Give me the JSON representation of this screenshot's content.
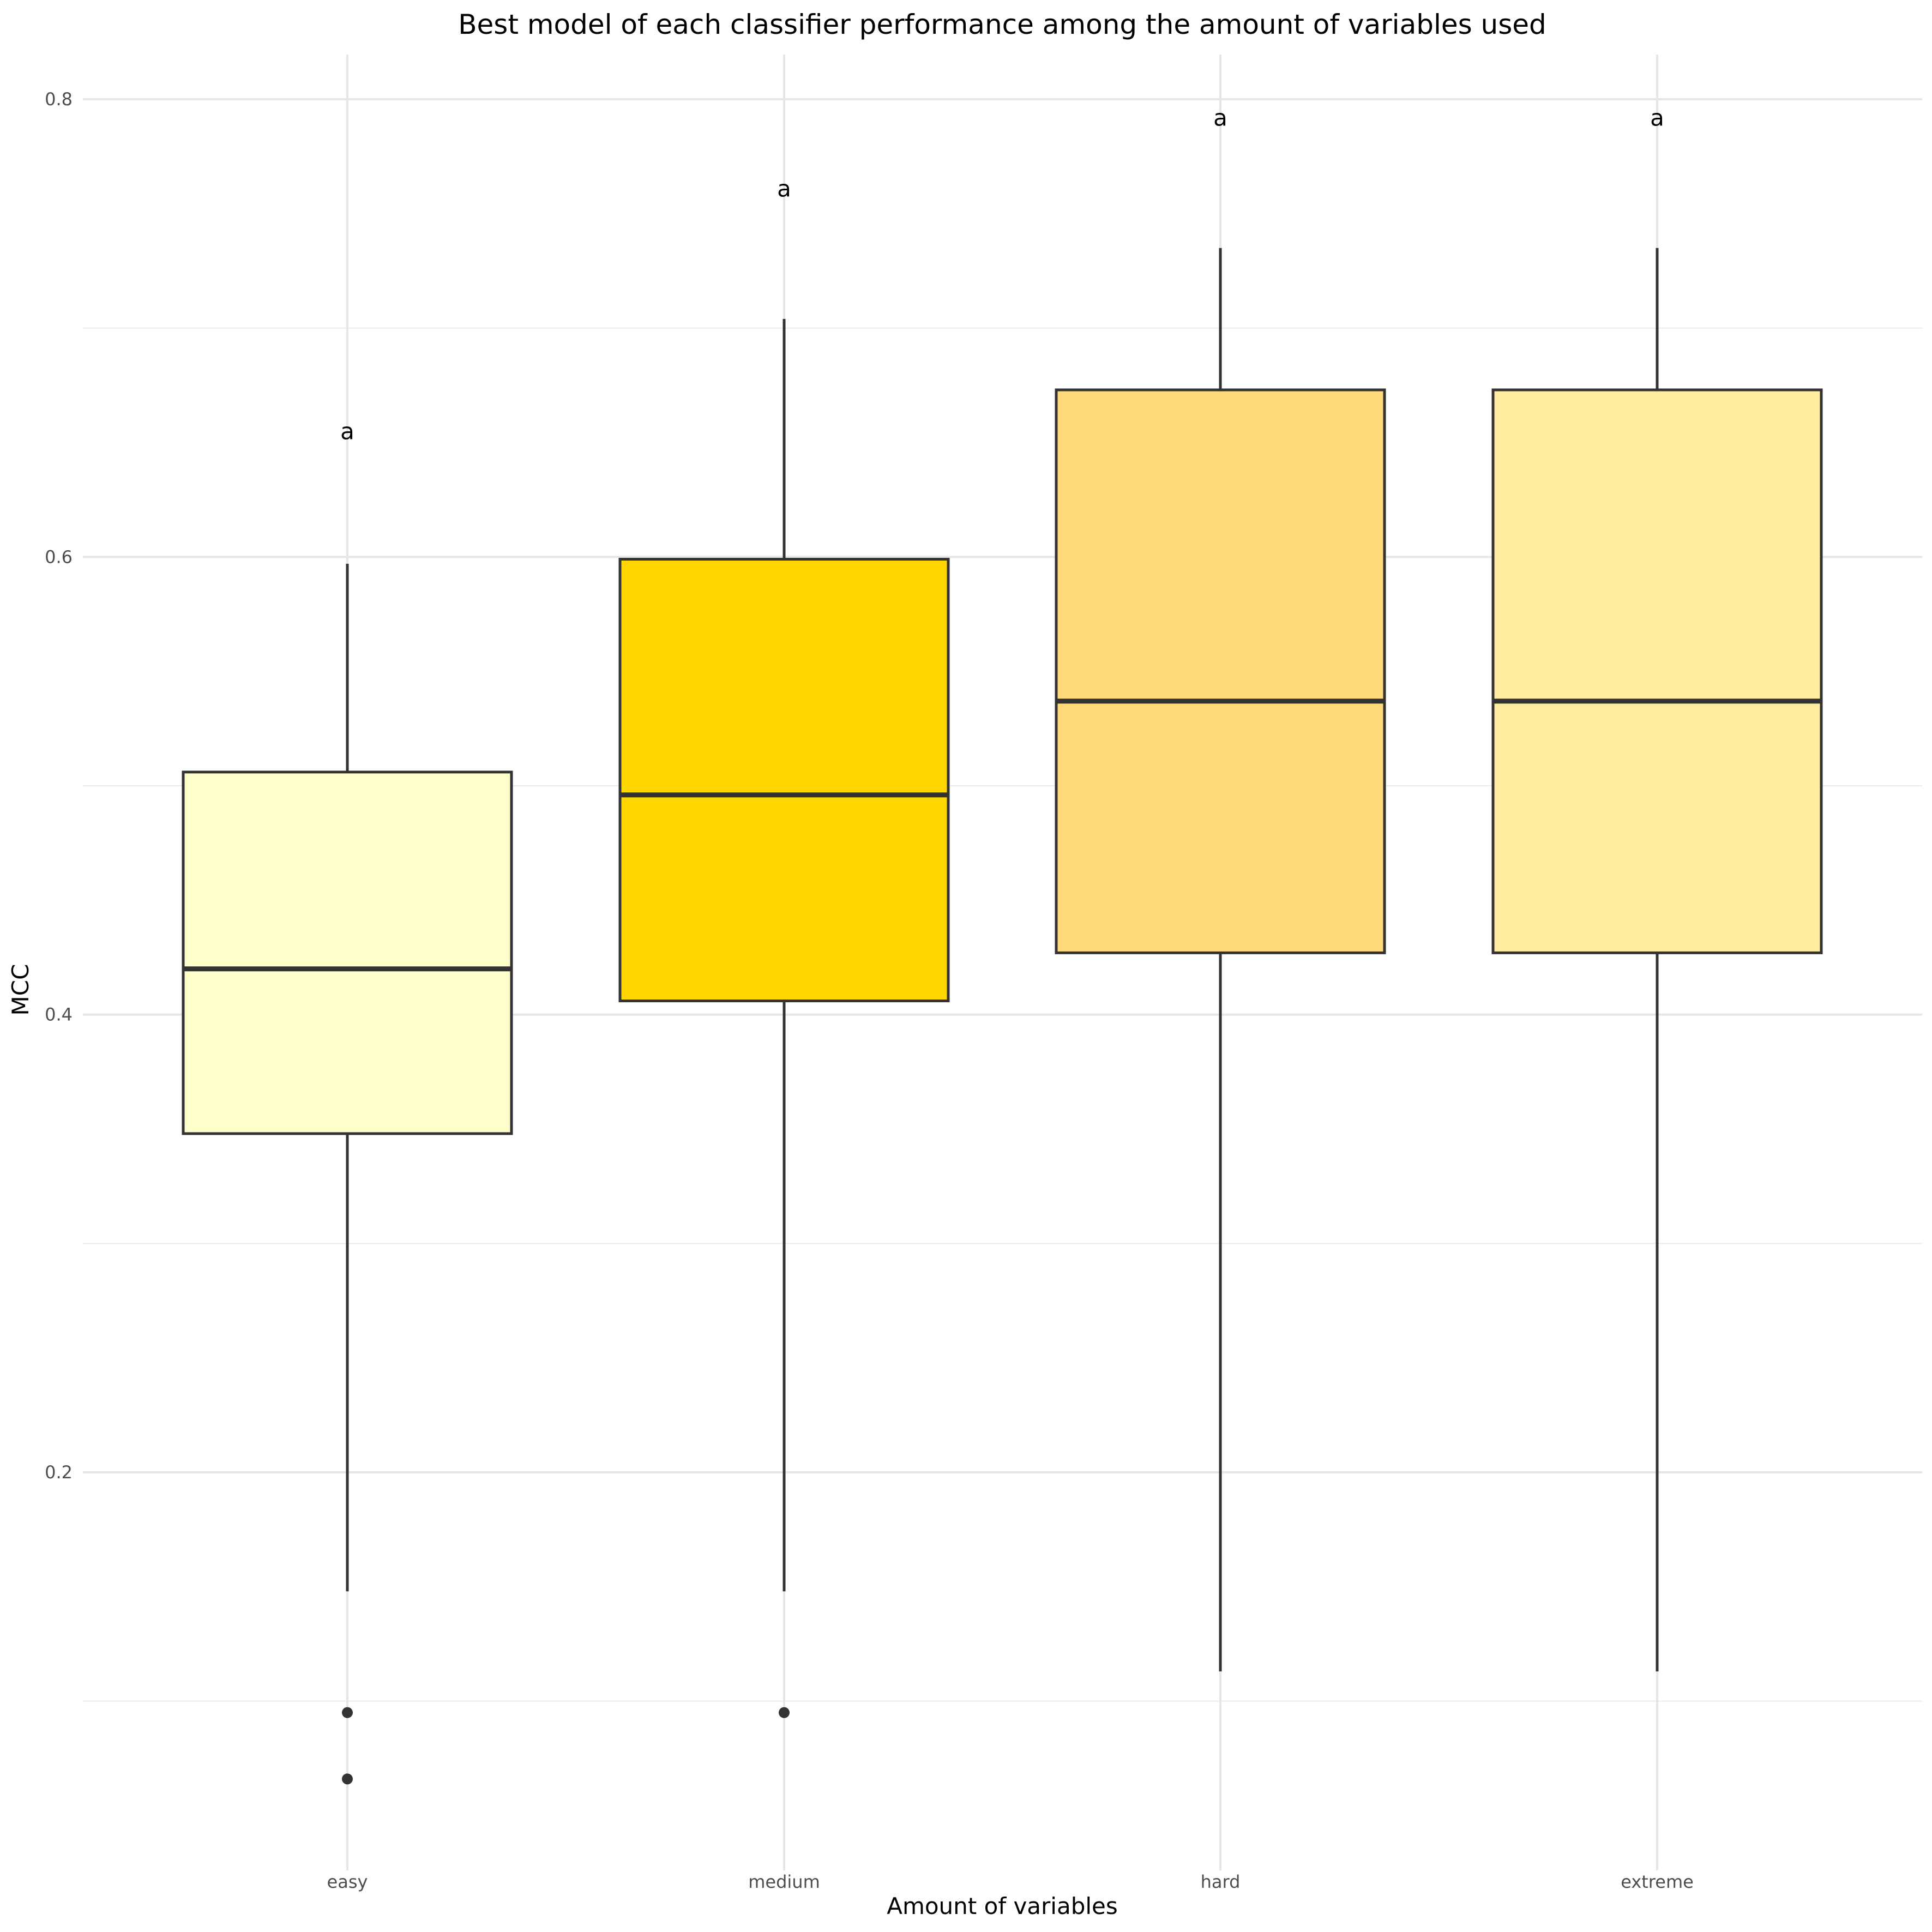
{
  "chart_data": {
    "type": "box",
    "title": "Best model of each classifier performance among the amount of variables used",
    "xlabel": "Amount of variables",
    "ylabel": "MCC",
    "ylim": [
      0.03,
      0.82
    ],
    "y_ticks": [
      {
        "value": 0.2,
        "label": "0.2"
      },
      {
        "value": 0.4,
        "label": "0.4"
      },
      {
        "value": 0.6,
        "label": "0.6"
      },
      {
        "value": 0.8,
        "label": "0.8"
      }
    ],
    "y_minor_gridlines": [
      0.1,
      0.3,
      0.5,
      0.7
    ],
    "grid": true,
    "legend": "none",
    "categories": [
      "easy",
      "medium",
      "hard",
      "extreme"
    ],
    "boxes": [
      {
        "category": "easy",
        "whisker_low": 0.148,
        "q1": 0.348,
        "median": 0.42,
        "q3": 0.506,
        "whisker_high": 0.597,
        "outliers": [
          0.095,
          0.066
        ],
        "color": "#FFFFCC",
        "letter": "a",
        "letter_y": 0.655
      },
      {
        "category": "medium",
        "whisker_low": 0.148,
        "q1": 0.406,
        "median": 0.496,
        "q3": 0.599,
        "whisker_high": 0.704,
        "outliers": [
          0.095
        ],
        "color": "#FFD700",
        "letter": "a",
        "letter_y": 0.761
      },
      {
        "category": "hard",
        "whisker_low": 0.113,
        "q1": 0.427,
        "median": 0.537,
        "q3": 0.673,
        "whisker_high": 0.735,
        "outliers": [],
        "color": "#FFD97A",
        "letter": "a",
        "letter_y": 0.792
      },
      {
        "category": "extreme",
        "whisker_low": 0.113,
        "q1": 0.427,
        "median": 0.537,
        "q3": 0.673,
        "whisker_high": 0.735,
        "outliers": [],
        "color": "#FFEC9F",
        "letter": "a",
        "letter_y": 0.792
      }
    ]
  }
}
